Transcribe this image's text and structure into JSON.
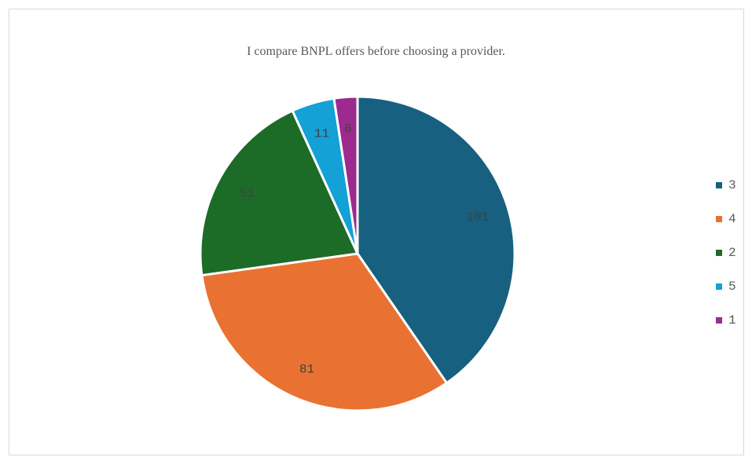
{
  "chart_data": {
    "type": "pie",
    "title": "I compare BNPL offers before choosing a provider.",
    "slices": [
      {
        "label": "3",
        "value": 101,
        "color": "#17607f"
      },
      {
        "label": "4",
        "value": 81,
        "color": "#e97232"
      },
      {
        "label": "2",
        "value": 51,
        "color": "#1c6b27"
      },
      {
        "label": "5",
        "value": 11,
        "color": "#13a1d6"
      },
      {
        "label": "1",
        "value": 6,
        "color": "#9c2a8f"
      }
    ],
    "legend_position": "right",
    "data_labels": true
  }
}
